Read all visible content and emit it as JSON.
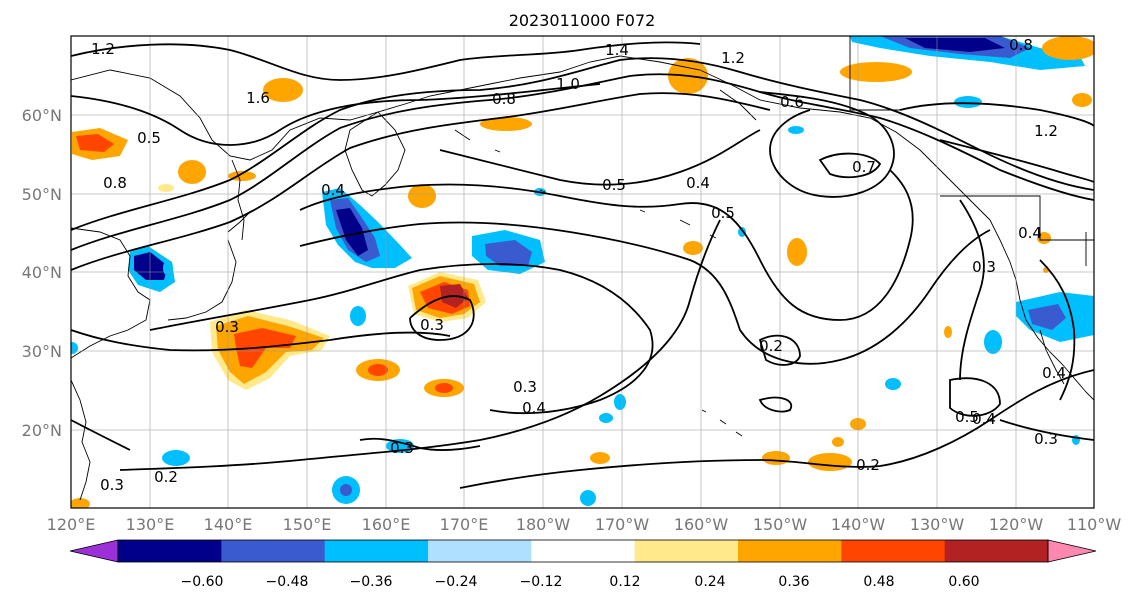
{
  "title": "2023011000 F072",
  "lat_labels": [
    "60°N",
    "50°N",
    "40°N",
    "30°N",
    "20°N"
  ],
  "lon_labels": [
    "120°E",
    "130°E",
    "140°E",
    "150°E",
    "160°E",
    "170°E",
    "180°W",
    "170°W",
    "160°W",
    "150°W",
    "140°W",
    "130°W",
    "120°W",
    "110°W"
  ],
  "colorbar": {
    "tick_labels": [
      "−0.60",
      "−0.48",
      "−0.36",
      "−0.24",
      "−0.12",
      "0.12",
      "0.24",
      "0.36",
      "0.48",
      "0.60"
    ],
    "colors": [
      "#9b30d9",
      "#00008b",
      "#3a5bd0",
      "#00bfff",
      "#b0e0ff",
      "#ffffff",
      "#ffe98a",
      "#ffa500",
      "#ff4500",
      "#b22222",
      "#ff88b0"
    ]
  },
  "contour_labels": [
    "1.2",
    "1.6",
    "0.5",
    "0.8",
    "1.4",
    "1.0",
    "1.2",
    "0.6",
    "0.8",
    "1.2",
    "0.7",
    "0.5",
    "0.4",
    "0.5",
    "0.4",
    "0.3",
    "0.3",
    "0.2",
    "0.3",
    "0.4",
    "0.5",
    "0.4",
    "0.3",
    "0.2",
    "0.2",
    "0.3",
    "0.3",
    "0.4",
    "0.4",
    "0.3",
    "0.8"
  ]
}
